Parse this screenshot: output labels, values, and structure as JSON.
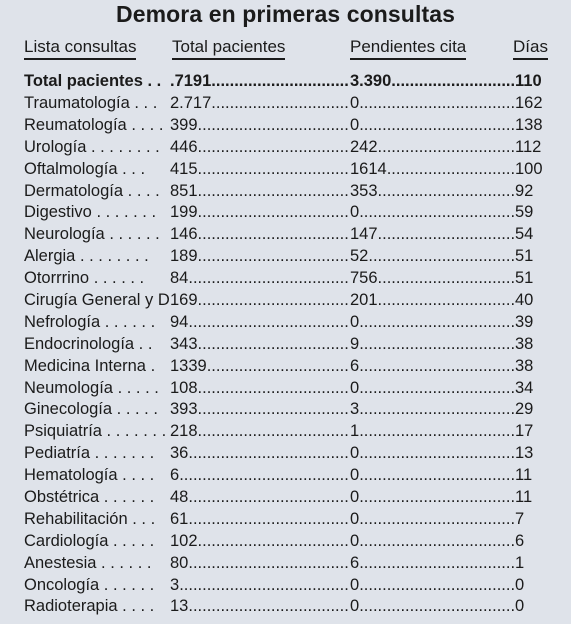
{
  "title": "Demora en primeras consultas",
  "headers": {
    "col0": "Lista consultas",
    "col1": "Total pacientes",
    "col2": "Pendientes cita",
    "col3": "Días"
  },
  "total": {
    "name": "Total pacientes . .",
    "total": ".7191",
    "pending": "3.390",
    "days": "110"
  },
  "rows": [
    {
      "name": "Traumatología",
      "dots": " . . .",
      "total": "2.717",
      "pending": "0",
      "days": "162"
    },
    {
      "name": "Reumatología",
      "dots": " . . . .",
      "total": "399",
      "pending": "0",
      "days": "138"
    },
    {
      "name": "Urología",
      "dots": " . . . . . . . .",
      "total": "446",
      "pending": "242",
      "days": "112"
    },
    {
      "name": "Oftalmología",
      "dots": " . . .",
      "total": "415",
      "pending": "1614",
      "days": "100"
    },
    {
      "name": "Dermatología",
      "dots": " . . . .",
      "total": "851",
      "pending": "353",
      "days": "92"
    },
    {
      "name": "Digestivo",
      "dots": " . . . . . . .",
      "total": "199",
      "pending": "0",
      "days": "59"
    },
    {
      "name": "Neurología",
      "dots": " . . . . . .",
      "total": "146",
      "pending": "147",
      "days": "54"
    },
    {
      "name": "Alergia",
      "dots": " . . . . . . . .",
      "total": "189",
      "pending": "52",
      "days": "51"
    },
    {
      "name": "Otorrrino",
      "dots": " . . . . . .",
      "total": "84",
      "pending": "756",
      "days": "51"
    },
    {
      "name": "Cirugía General y D",
      "dots": "",
      "total": "169",
      "pending": "201",
      "days": "40"
    },
    {
      "name": "Nefrología",
      "dots": " . . . . . .",
      "total": "94",
      "pending": "0",
      "days": "39"
    },
    {
      "name": "Endocrinología",
      "dots": " . .",
      "total": "343",
      "pending": "9",
      "days": "38"
    },
    {
      "name": "Medicina Interna",
      "dots": " .",
      "total": "1339",
      "pending": "6",
      "days": "38"
    },
    {
      "name": "Neumología",
      "dots": " . . . . .",
      "total": "108",
      "pending": "0",
      "days": "34"
    },
    {
      "name": "Ginecología",
      "dots": " . . . . .",
      "total": "393",
      "pending": "3",
      "days": "29"
    },
    {
      "name": "Psiquiatría",
      "dots": " . . . . . . .",
      "total": "218",
      "pending": "1",
      "days": "17"
    },
    {
      "name": "Pediatría",
      "dots": " . . . . . . .",
      "total": "36",
      "pending": "0",
      "days": "13"
    },
    {
      "name": "Hematología",
      "dots": " . . . .",
      "total": "6",
      "pending": "0",
      "days": "11"
    },
    {
      "name": "Obstétrica",
      "dots": " . . . . . .",
      "total": "48",
      "pending": "0",
      "days": "11"
    },
    {
      "name": "Rehabilitación",
      "dots": " . . .",
      "total": "61",
      "pending": "0",
      "days": "7"
    },
    {
      "name": "Cardiología",
      "dots": " . . . . .",
      "total": "102",
      "pending": "0",
      "days": "6"
    },
    {
      "name": "Anestesia",
      "dots": " . . . . . .",
      "total": "80",
      "pending": "6",
      "days": "1"
    },
    {
      "name": "Oncología",
      "dots": " . . . . . .",
      "total": "3",
      "pending": "0",
      "days": "0"
    },
    {
      "name": "Radioterapia",
      "dots": " . . . .",
      "total": "13",
      "pending": "0",
      "days": "0"
    }
  ]
}
